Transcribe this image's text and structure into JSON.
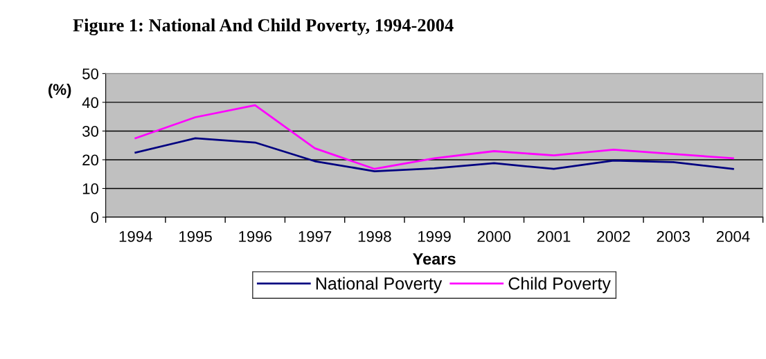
{
  "chart_data": {
    "type": "line",
    "title": "Figure 1: National And Child Poverty, 1994-2004",
    "xlabel": "Years",
    "ylabel": "(%)",
    "categories": [
      "1994",
      "1995",
      "1996",
      "1997",
      "1998",
      "1999",
      "2000",
      "2001",
      "2002",
      "2003",
      "2004"
    ],
    "series": [
      {
        "name": "National Poverty",
        "color": "#000080",
        "values": [
          22.5,
          27.5,
          26,
          19.5,
          16,
          17,
          18.8,
          16.8,
          19.7,
          19.2,
          16.8
        ]
      },
      {
        "name": "Child Poverty",
        "color": "#ff00ff",
        "values": [
          27.5,
          34.8,
          39,
          24,
          16.8,
          20.5,
          23,
          21.5,
          23.5,
          22,
          20.5
        ]
      }
    ],
    "ylim": [
      0,
      50
    ],
    "yticks": [
      0,
      10,
      20,
      30,
      40,
      50
    ],
    "grid": "y",
    "legend": "bottom",
    "marker": "none",
    "line_style": "solid"
  }
}
